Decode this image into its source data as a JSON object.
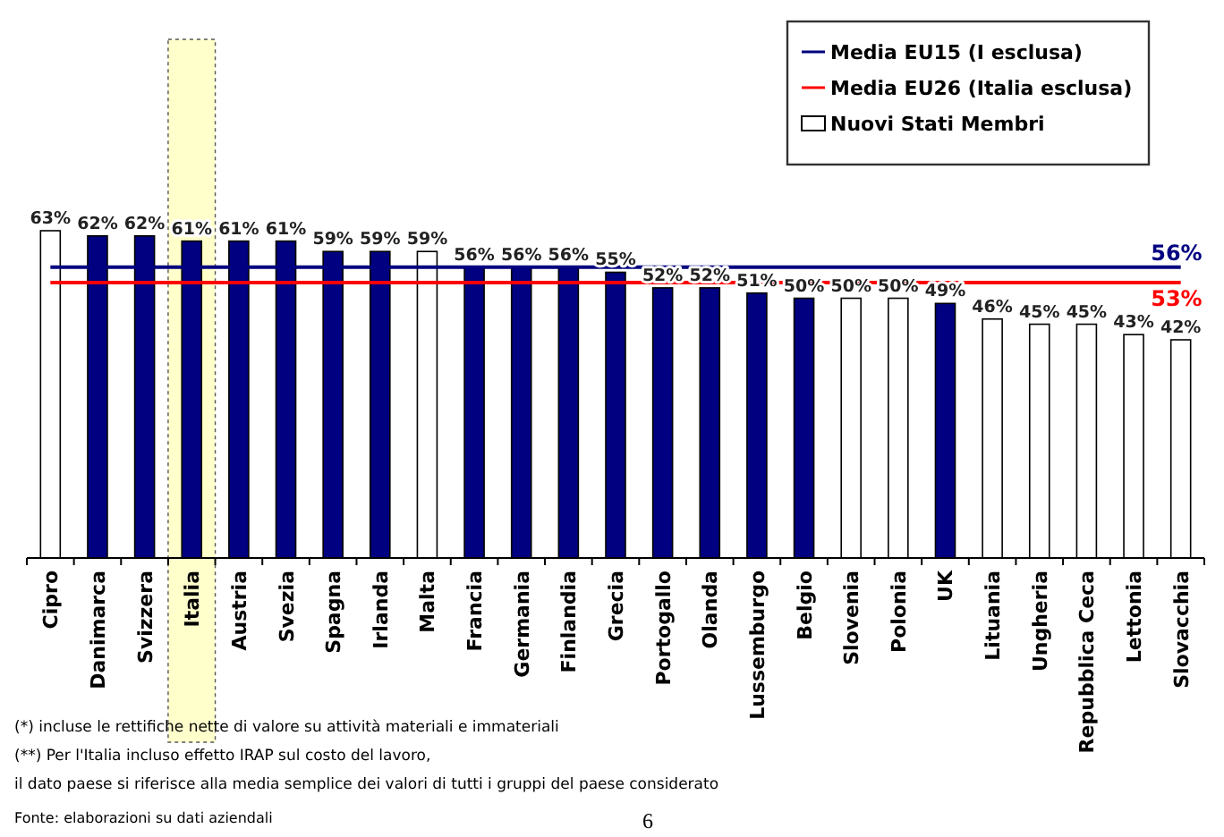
{
  "chart_data": {
    "type": "bar",
    "categories": [
      "Cipro",
      "Danimarca",
      "Svizzera",
      "Italia",
      "Austria",
      "Svezia",
      "Spagna",
      "Irlanda",
      "Malta",
      "Francia",
      "Germania",
      "Finlandia",
      "Grecia",
      "Portogallo",
      "Olanda",
      "Lussemburgo",
      "Belgio",
      "Slovenia",
      "Polonia",
      "UK",
      "Lituania",
      "Ungheria",
      "Repubblica Ceca",
      "Lettonia",
      "Slovacchia"
    ],
    "series": [
      {
        "color": "#000080",
        "values": [
          null,
          62,
          62,
          61,
          61,
          61,
          59,
          59,
          null,
          56,
          56,
          56,
          55,
          52,
          52,
          51,
          50,
          null,
          null,
          49,
          null,
          null,
          null,
          null,
          null
        ],
        "value_labels": [
          null,
          "62%",
          "62%",
          "61%",
          "61%",
          "61%",
          "59%",
          "59%",
          null,
          "56%",
          "56%",
          "56%",
          "55%",
          "52%",
          "52%",
          "51%",
          "50%",
          null,
          null,
          "49%",
          null,
          null,
          null,
          null,
          null
        ]
      },
      {
        "name": "Nuovi Stati Membri",
        "color": "#ffffff",
        "values": [
          63,
          null,
          null,
          null,
          null,
          null,
          null,
          null,
          59,
          null,
          null,
          null,
          null,
          null,
          null,
          null,
          null,
          50,
          50,
          null,
          46,
          45,
          45,
          43,
          42
        ],
        "value_labels": [
          "63%",
          null,
          null,
          null,
          null,
          null,
          null,
          null,
          "59%",
          null,
          null,
          null,
          null,
          null,
          null,
          null,
          null,
          "50%",
          "50%",
          null,
          "46%",
          "45%",
          "45%",
          "43%",
          "42%"
        ]
      },
      {
        "type": "line",
        "name": "Media EU26 (Italia esclusa)",
        "color": "#ff0000",
        "values": [
          53,
          53,
          53,
          53,
          53,
          53,
          53,
          53,
          53,
          53,
          53,
          53,
          53,
          53,
          53,
          53,
          53,
          53,
          53,
          53,
          53,
          53,
          53,
          53,
          53
        ],
        "value_labels": [
          null,
          null,
          null,
          null,
          null,
          null,
          null,
          null,
          null,
          null,
          null,
          null,
          null,
          null,
          null,
          null,
          null,
          null,
          null,
          null,
          null,
          null,
          null,
          null,
          "53%"
        ]
      },
      {
        "type": "line",
        "name": "Media EU15 (I esclusa)",
        "color": "#000080",
        "values": [
          56,
          56,
          56,
          56,
          56,
          56,
          56,
          56,
          56,
          56,
          56,
          56,
          56,
          56,
          56,
          56,
          56,
          56,
          56,
          56,
          56,
          56,
          56,
          56,
          56
        ],
        "value_labels": [
          null,
          null,
          null,
          null,
          null,
          null,
          null,
          null,
          null,
          null,
          null,
          null,
          null,
          null,
          null,
          null,
          null,
          null,
          null,
          null,
          null,
          null,
          null,
          null,
          "56%"
        ]
      }
    ],
    "bands": [
      {
        "axis": "x",
        "from": "Italia",
        "to": "Italia",
        "color": "#ffffcc"
      }
    ],
    "legend": "top right",
    "annotations": [
      "(*) incluse le rettifiche nette di valore su attività materiali e immateriali",
      "(**) Per l'Italia incluso effetto IRAP sul costo del lavoro,",
      "il dato paese si riferisce alla media semplice dei valori di tutti i gruppi del paese considerato",
      "Fonte: elaborazioni su dati aziendali",
      "6"
    ]
  }
}
